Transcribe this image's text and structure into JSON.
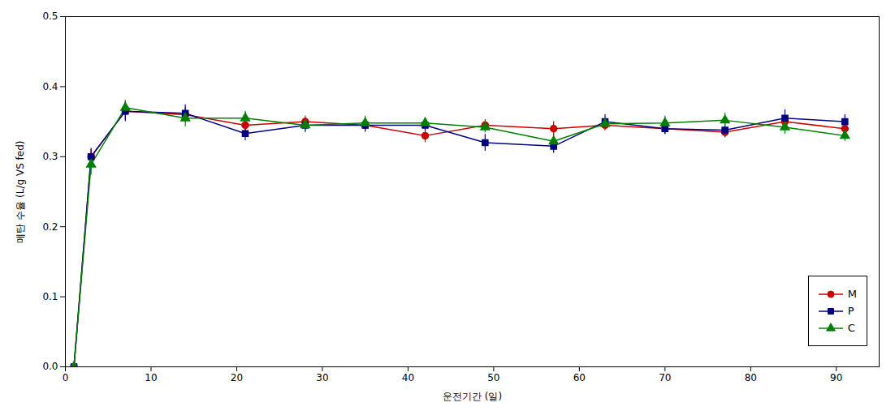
{
  "chart_data": {
    "type": "line",
    "xlabel": "운전기간 (일)",
    "ylabel": "메탄 수율 (L/g VS fed)",
    "x": [
      1,
      3,
      7,
      14,
      21,
      28,
      35,
      42,
      49,
      57,
      63,
      70,
      77,
      84,
      91
    ],
    "series": [
      {
        "name": "M",
        "color": "#cc0000",
        "marker": "circle",
        "values": [
          0.0,
          0.3,
          0.365,
          0.36,
          0.345,
          0.35,
          0.345,
          0.33,
          0.345,
          0.34,
          0.345,
          0.34,
          0.335,
          0.35,
          0.34
        ],
        "yerr": [
          0.0,
          0.01,
          0.012,
          0.01,
          0.008,
          0.008,
          0.008,
          0.01,
          0.008,
          0.01,
          0.008,
          0.008,
          0.008,
          0.008,
          0.01
        ]
      },
      {
        "name": "P",
        "color": "#000080",
        "marker": "square",
        "values": [
          0.0,
          0.3,
          0.365,
          0.362,
          0.333,
          0.345,
          0.345,
          0.345,
          0.32,
          0.315,
          0.35,
          0.34,
          0.338,
          0.355,
          0.35
        ],
        "yerr": [
          0.0,
          0.012,
          0.015,
          0.012,
          0.01,
          0.01,
          0.01,
          0.008,
          0.012,
          0.01,
          0.01,
          0.008,
          0.01,
          0.012,
          0.01
        ]
      },
      {
        "name": "C",
        "color": "#008000",
        "marker": "triangle",
        "values": [
          0.0,
          0.289,
          0.37,
          0.355,
          0.355,
          0.345,
          0.348,
          0.348,
          0.342,
          0.322,
          0.347,
          0.348,
          0.352,
          0.342,
          0.33
        ],
        "yerr": [
          0.0,
          0.015,
          0.01,
          0.012,
          0.01,
          0.01,
          0.01,
          0.008,
          0.008,
          0.01,
          0.008,
          0.01,
          0.01,
          0.01,
          0.008
        ]
      }
    ],
    "xlim": [
      0,
      95
    ],
    "ylim": [
      0.0,
      0.5
    ],
    "xticks": [
      0,
      10,
      20,
      30,
      40,
      50,
      60,
      70,
      80,
      90
    ],
    "yticks": [
      {
        "value": 0,
        "label": "0.0"
      },
      0.1,
      0.2,
      0.3,
      0.4,
      0.5
    ],
    "grid": false,
    "legend": "lower right"
  }
}
